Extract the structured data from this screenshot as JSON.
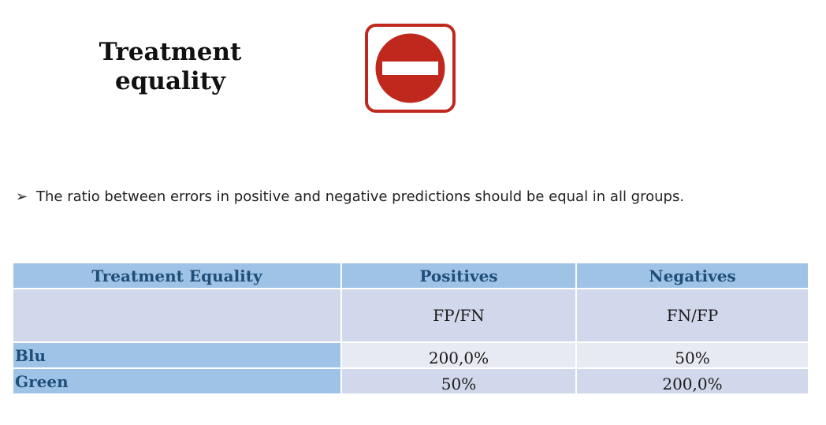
{
  "title": "Treatment equality",
  "sign_icon": "no-entry-icon",
  "bullet": {
    "marker": "➢",
    "text": "The ratio between errors in positive and negative predictions  should be equal in all groups."
  },
  "table": {
    "headers": [
      "Treatment Equality",
      "Positives",
      "Negatives"
    ],
    "subheader": [
      "",
      "FP/FN",
      "FN/FP"
    ],
    "rows": [
      {
        "group": "Blu",
        "positives": "200,0%",
        "negatives": "50%"
      },
      {
        "group": "Green",
        "positives": "50%",
        "negatives": "200,0%"
      }
    ]
  },
  "colors": {
    "header_fill": "#9ec3e6",
    "header_text": "#1f4e79",
    "cell_fill": "#d2d8eb",
    "cell_fill_alt": "#e8eaf3",
    "sign_red": "#c0281d"
  }
}
